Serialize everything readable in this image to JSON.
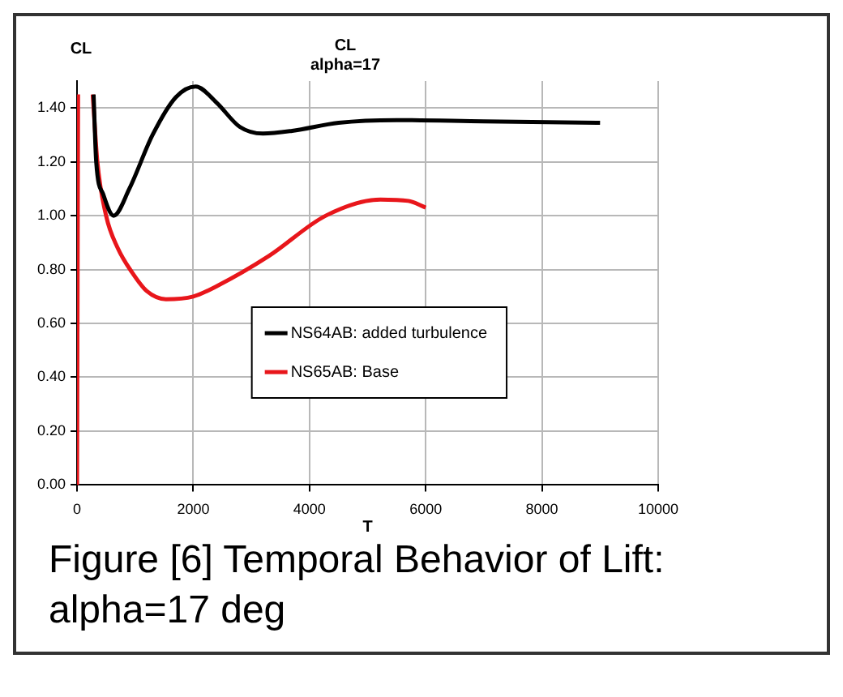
{
  "chart_data": {
    "type": "line",
    "title": "CL\nalpha=17",
    "ylabel": "CL",
    "xlabel": "T",
    "annotations": [
      "Figure [6] Temporal Behavior of Lift: alpha=17 deg"
    ],
    "xlim": [
      0,
      10000
    ],
    "xticks": [
      0,
      2000,
      4000,
      6000,
      8000,
      10000
    ],
    "ylim": [
      0,
      1.5
    ],
    "yticks": [
      {
        "value": 0,
        "label": "0.00"
      },
      {
        "value": 0.2,
        "label": "0.20"
      },
      {
        "value": 0.4,
        "label": "0.40"
      },
      {
        "value": 0.6,
        "label": "0.60"
      },
      {
        "value": 0.8,
        "label": "0.80"
      },
      {
        "value": 1,
        "label": "1.00"
      },
      {
        "value": 1.2,
        "label": "1.20"
      },
      {
        "value": 1.4,
        "label": "1.40"
      }
    ],
    "grid": true,
    "legend": "center",
    "marker": "none",
    "line_style": "solid",
    "series": [
      {
        "name": "NS64AB: added turbulence",
        "color": "#000000",
        "x": [
          285,
          330,
          450,
          630,
          900,
          1300,
          1700,
          2040,
          2400,
          2800,
          3200,
          3700,
          4500,
          5500,
          7000,
          9000
        ],
        "values": [
          1.45,
          1.2,
          1.08,
          1.0,
          1.1,
          1.3,
          1.44,
          1.48,
          1.42,
          1.33,
          1.305,
          1.315,
          1.345,
          1.355,
          1.35,
          1.345
        ]
      },
      {
        "name": "NS65AB: Base",
        "color": "#e8161b",
        "x": [
          0,
          18,
          null,
          270,
          350,
          500,
          700,
          945,
          1200,
          1530,
          2000,
          2420,
          3300,
          4280,
          5220,
          5700,
          6000
        ],
        "values": [
          0,
          1.45,
          null,
          1.45,
          1.2,
          1.0,
          0.88,
          0.79,
          0.72,
          0.69,
          0.7,
          0.74,
          0.85,
          1.0,
          1.06,
          1.055,
          1.03
        ]
      }
    ]
  }
}
